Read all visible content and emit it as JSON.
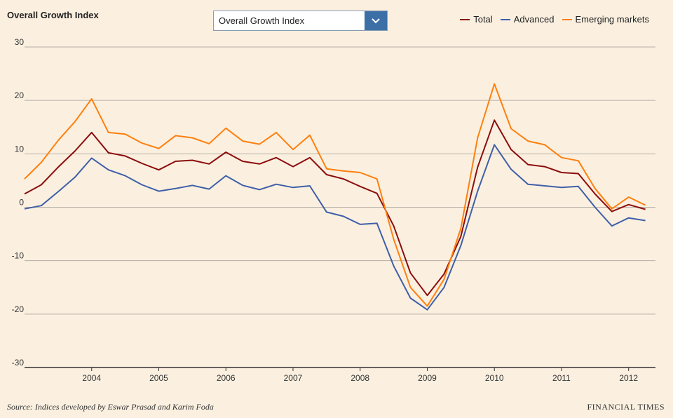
{
  "header": {
    "title": "Overall Growth Index",
    "dropdown_value": "Overall Growth Index"
  },
  "footer": {
    "source": "Source: Indices developed by Eswar Prasad and Karim Foda",
    "brand": "FINANCIAL TIMES"
  },
  "icons": {
    "dropdown": "chevron-down-icon"
  },
  "colors": {
    "background": "#fbf0e0",
    "grid": "#b5aea5",
    "total": "#8b0d0d",
    "advanced": "#3f5fa8",
    "emerging": "#ff7f0e"
  },
  "chart_data": {
    "type": "line",
    "title": "Overall Growth Index",
    "xlabel": "",
    "ylabel": "",
    "x_ticks": [
      "2004",
      "2005",
      "2006",
      "2007",
      "2008",
      "2009",
      "2010",
      "2011",
      "2012"
    ],
    "y_ticks": [
      30,
      20,
      10,
      0,
      -10,
      -20,
      -30
    ],
    "ylim": [
      -30,
      30
    ],
    "xlim": [
      2003.0,
      2012.4
    ],
    "grid": true,
    "legend_position": "top-right",
    "x": [
      2003.0,
      2003.25,
      2003.5,
      2003.75,
      2004.0,
      2004.25,
      2004.5,
      2004.75,
      2005.0,
      2005.25,
      2005.5,
      2005.75,
      2006.0,
      2006.25,
      2006.5,
      2006.75,
      2007.0,
      2007.25,
      2007.5,
      2007.75,
      2008.0,
      2008.25,
      2008.5,
      2008.75,
      2009.0,
      2009.25,
      2009.5,
      2009.75,
      2010.0,
      2010.25,
      2010.5,
      2010.75,
      2011.0,
      2011.25,
      2011.5,
      2011.75,
      2012.0,
      2012.25
    ],
    "series": [
      {
        "name": "Total",
        "values": [
          2.5,
          4.2,
          7.5,
          10.5,
          14.0,
          10.2,
          9.6,
          8.2,
          7.0,
          8.6,
          8.8,
          8.1,
          10.3,
          8.6,
          8.1,
          9.3,
          7.6,
          9.3,
          6.1,
          5.3,
          3.9,
          2.6,
          -3.5,
          -12.3,
          -16.5,
          -12.5,
          -5.5,
          7.5,
          16.3,
          10.8,
          8.0,
          7.6,
          6.5,
          6.3,
          2.5,
          -0.8,
          0.5,
          -0.4
        ]
      },
      {
        "name": "Advanced",
        "values": [
          -0.3,
          0.3,
          2.9,
          5.6,
          9.2,
          7.0,
          5.9,
          4.2,
          3.0,
          3.5,
          4.1,
          3.4,
          5.9,
          4.1,
          3.3,
          4.3,
          3.7,
          4.0,
          -0.9,
          -1.7,
          -3.2,
          -3.0,
          -11.0,
          -17.0,
          -19.2,
          -15.0,
          -7.2,
          3.0,
          11.7,
          7.1,
          4.3,
          4.0,
          3.7,
          3.9,
          0.0,
          -3.5,
          -2.0,
          -2.5
        ]
      },
      {
        "name": "Emerging markets",
        "values": [
          5.3,
          8.4,
          12.5,
          16.0,
          20.3,
          14.0,
          13.7,
          12.0,
          11.0,
          13.4,
          13.0,
          11.9,
          14.8,
          12.4,
          11.8,
          14.0,
          10.8,
          13.5,
          7.2,
          6.8,
          6.5,
          5.3,
          -6.0,
          -15.0,
          -18.5,
          -13.5,
          -4.0,
          13.0,
          23.1,
          14.7,
          12.4,
          11.7,
          9.3,
          8.7,
          3.5,
          -0.3,
          1.9,
          0.4
        ]
      }
    ]
  }
}
